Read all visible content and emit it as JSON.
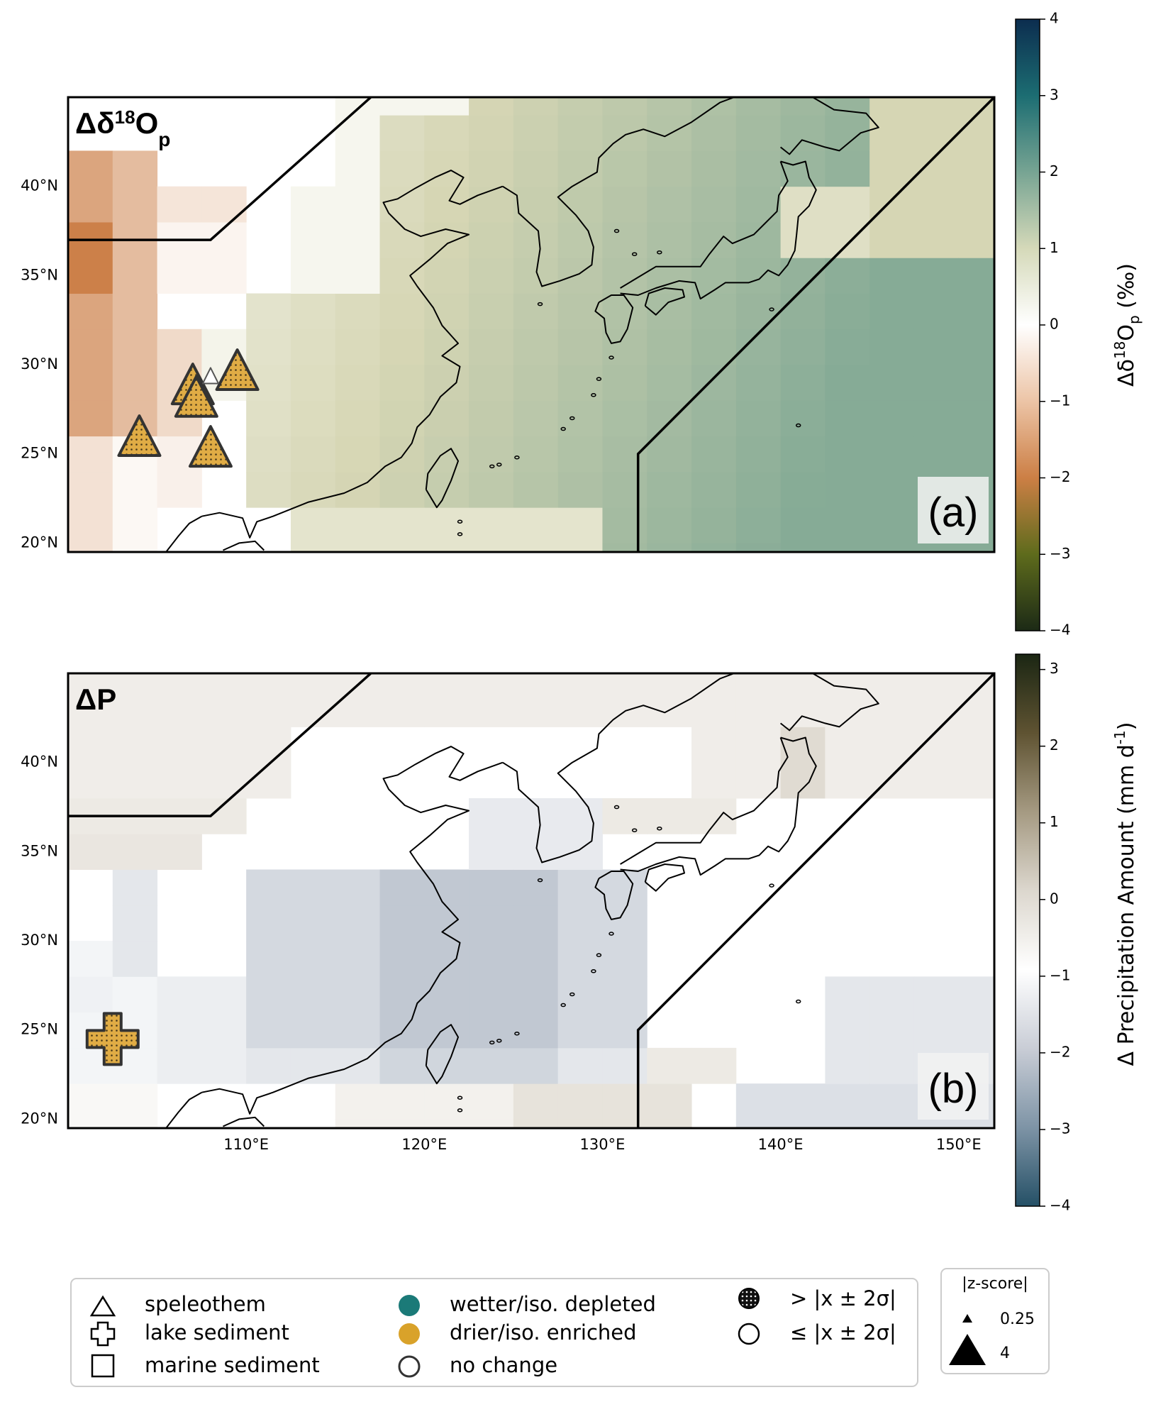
{
  "panels": [
    {
      "id": "a",
      "title_main": "Δδ",
      "title_sup": "18",
      "title_after": "O",
      "title_sub": "p",
      "tag": "(a)",
      "field": "d18O"
    },
    {
      "id": "b",
      "title_main": "ΔP",
      "tag": "(b)",
      "field": "precip"
    }
  ],
  "map": {
    "lon_range": [
      100,
      152
    ],
    "lat_range": [
      19.5,
      45
    ],
    "lon_ticks": [
      "110°E",
      "120°E",
      "130°E",
      "140°E",
      "150°E"
    ],
    "lon_tick_values": [
      110,
      120,
      130,
      140,
      150
    ],
    "lat_ticks": [
      "40°N",
      "35°N",
      "30°N",
      "25°N",
      "20°N"
    ],
    "lat_tick_values": [
      40,
      35,
      30,
      25,
      20
    ],
    "region_lines_lonlat": [
      [
        [
          100,
          37
        ],
        [
          108,
          37
        ],
        [
          117,
          45
        ]
      ],
      [
        [
          132,
          19.5
        ],
        [
          132,
          25
        ],
        [
          152,
          45
        ]
      ]
    ]
  },
  "colorbars": [
    {
      "label_main": "Δδ",
      "label_sup": "18",
      "label_mid": "O",
      "label_sub": "p",
      "label_end": " (‰)",
      "ticks": [
        "4",
        "3",
        "2",
        "1",
        "0",
        "−1",
        "−2",
        "−3",
        "−4"
      ],
      "range": [
        -4,
        4
      ],
      "colors": [
        "#0c2d4f",
        "#1c6d72",
        "#77a493",
        "#d5d9b9",
        "#ffffff",
        "#ecc4a6",
        "#cc7f45",
        "#5e6b1c",
        "#1c2a16"
      ]
    },
    {
      "label_main": "Δ Precipitation Amount (mm d",
      "label_sup": "-1",
      "label_end": ")",
      "ticks": [
        "3",
        "2",
        "1",
        "0",
        "−1",
        "−2",
        "−3",
        "−4"
      ],
      "range": [
        -4,
        3.2
      ],
      "colors": [
        "#1b2613",
        "#5f5332",
        "#a59a82",
        "#dcd7ce",
        "#ffffff",
        "#c9cdd6",
        "#7e94a6",
        "#255066"
      ]
    }
  ],
  "proxy_sites": {
    "panel_a_speleothems": [
      {
        "lon": 107,
        "lat": 28.7,
        "zscore": "large",
        "significant": true,
        "signal": "drier/iso. enriched"
      },
      {
        "lon": 109.5,
        "lat": 29.5,
        "zscore": "large",
        "significant": true,
        "signal": "drier/iso. enriched"
      },
      {
        "lon": 108,
        "lat": 29.3,
        "zscore": "small",
        "significant": false,
        "signal": "no change"
      },
      {
        "lon": 107.2,
        "lat": 28,
        "zscore": "large",
        "significant": true,
        "signal": "drier/iso. enriched"
      },
      {
        "lon": 104,
        "lat": 25.8,
        "zscore": "large",
        "significant": true,
        "signal": "drier/iso. enriched"
      },
      {
        "lon": 108,
        "lat": 25.2,
        "zscore": "large",
        "significant": true,
        "signal": "drier/iso. enriched"
      }
    ],
    "panel_b_lake_sediments": [
      {
        "lon": 102.5,
        "lat": 24.5,
        "zscore": "large",
        "significant": true,
        "signal": "drier/iso. enriched"
      }
    ]
  },
  "legend": {
    "archive_types": [
      "speleothem",
      "lake sediment",
      "marine sediment"
    ],
    "signals": [
      {
        "label": "wetter/iso. depleted",
        "color": "#1b7a78"
      },
      {
        "label": "drier/iso. enriched",
        "color": "#d9a22a"
      },
      {
        "label": "no change",
        "color": "#ffffff"
      }
    ],
    "significance": [
      "> |x ± 2σ|",
      "≤ |x ± 2σ|"
    ],
    "zscore_title": "|z-score|",
    "zscore_values": [
      "0.25",
      "4"
    ]
  },
  "colors": {
    "marker_fill": "#e0ac45",
    "marker_edge": "#333333",
    "frame": "#000000"
  }
}
